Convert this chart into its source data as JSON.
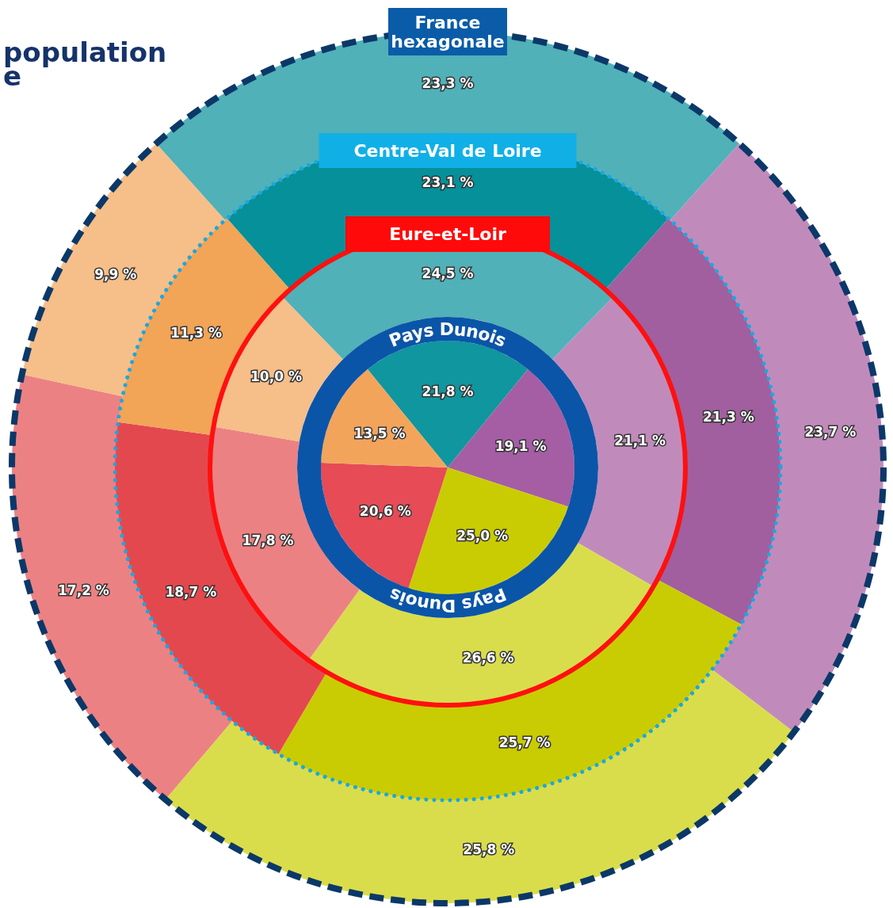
{
  "chart_data": {
    "type": "donut",
    "annotations": [
      "population",
      "e"
    ],
    "categories": [
      null,
      null,
      null,
      null,
      null
    ],
    "series": [
      {
        "name": "Pays Dunois",
        "type": "pie",
        "values": [
          21.8,
          19.1,
          25.0,
          20.6,
          13.5
        ],
        "value_labels": [
          "21,8 %",
          "19,1 %",
          "25,0 %",
          "20,6 %",
          "13,5 %"
        ],
        "colors": [
          "#10969f",
          "#a55ea4",
          "#c9cc02",
          "#e64b56",
          "#f3a45b"
        ]
      },
      {
        "name": "Eure-et-Loir",
        "values": [
          24.5,
          21.1,
          26.6,
          17.8,
          10.0
        ],
        "value_labels": [
          "24,5 %",
          "21,1 %",
          "26,6 %",
          "17,8 %",
          "10,0 %"
        ],
        "colors": [
          "#50b1b9",
          "#c08bbb",
          "#d9dd4b",
          "#ec8183",
          "#f6be88"
        ]
      },
      {
        "name": "Centre-Val de Loire",
        "values": [
          23.1,
          21.3,
          25.7,
          18.7,
          11.3
        ],
        "value_labels": [
          "23,1 %",
          "21,3 %",
          "25,7 %",
          "18,7 %",
          "11,3 %"
        ],
        "colors": [
          "#06909a",
          "#a15f9f",
          "#c9cc02",
          "#e4484f",
          "#f2a457"
        ]
      },
      {
        "name": "France hexagonale",
        "values": [
          23.3,
          23.7,
          25.8,
          17.2,
          9.9
        ],
        "value_labels": [
          "23,3 %",
          "23,7 %",
          "25,8 %",
          "17,2 %",
          "9,9 %"
        ],
        "colors": [
          "#50b1b9",
          "#c08bbb",
          "#d9dd4b",
          "#ec8183",
          "#f6be88"
        ]
      }
    ]
  }
}
